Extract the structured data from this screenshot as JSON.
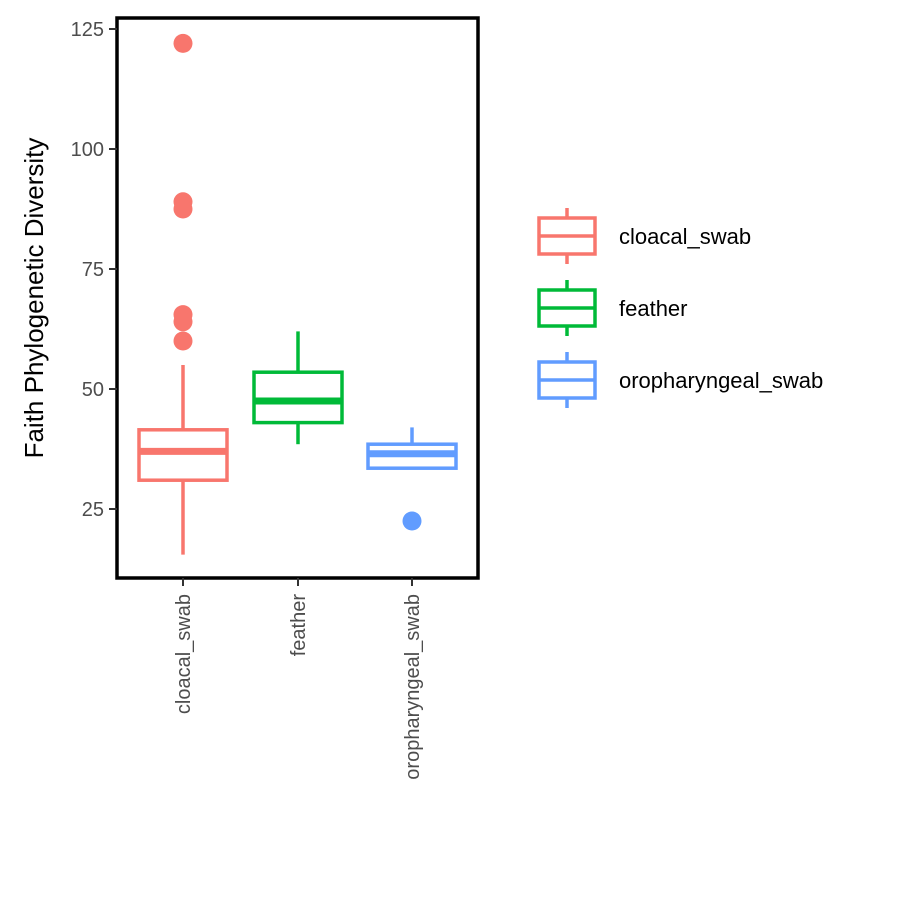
{
  "chart_data": {
    "type": "boxplot",
    "title": "",
    "xlabel": "",
    "ylabel": "Faith Phylogenetic Diversity",
    "ylim": [
      10,
      126
    ],
    "yticks": [
      25,
      50,
      75,
      100,
      125
    ],
    "grid": false,
    "legend_position": "right",
    "categories": [
      "cloacal_swab",
      "feather",
      "oropharyngeal_swab"
    ],
    "series": [
      {
        "name": "cloacal_swab",
        "color": "#F8766D",
        "whisker_low": 15.5,
        "q1": 31,
        "median": 37,
        "q3": 41.5,
        "whisker_high": 55,
        "outliers": [
          122,
          89,
          87.5,
          65.5,
          64,
          60
        ]
      },
      {
        "name": "feather",
        "color": "#00BA38",
        "whisker_low": 38.5,
        "q1": 43,
        "median": 47.5,
        "q3": 53.5,
        "whisker_high": 62,
        "outliers": []
      },
      {
        "name": "oropharyngeal_swab",
        "color": "#619CFF",
        "whisker_low": 33.5,
        "q1": 33.5,
        "median": 36.5,
        "q3": 38.5,
        "whisker_high": 42,
        "outliers": [
          22.5
        ]
      }
    ]
  }
}
